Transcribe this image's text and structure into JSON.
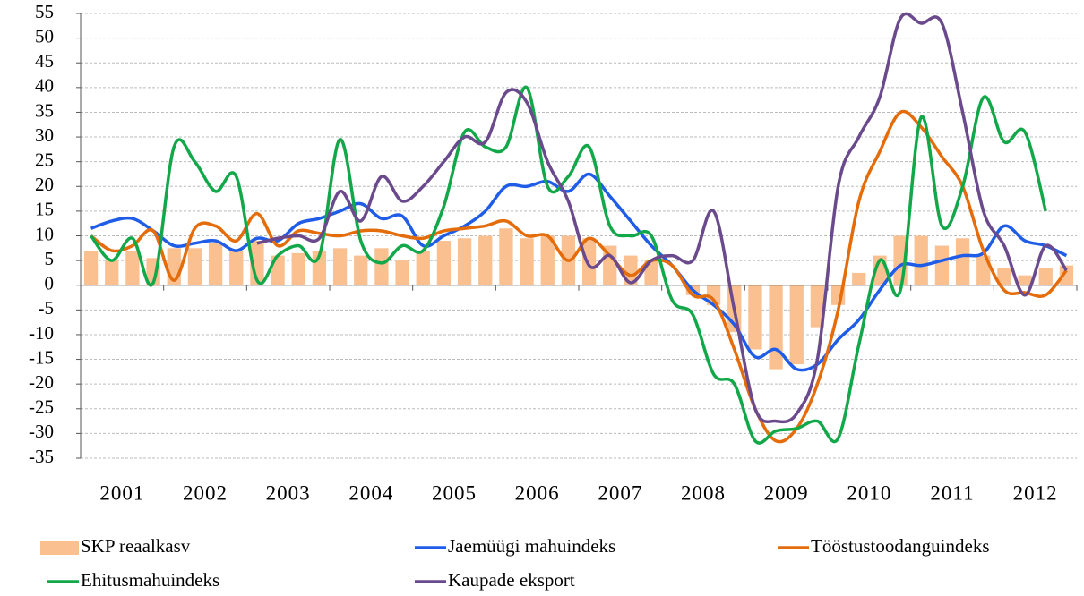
{
  "chart_data": {
    "type": "bar-line",
    "categories": [
      "2001",
      null,
      null,
      null,
      "2002",
      null,
      null,
      null,
      "2003",
      null,
      null,
      null,
      "2004",
      null,
      null,
      null,
      "2005",
      null,
      null,
      null,
      "2006",
      null,
      null,
      null,
      "2007",
      null,
      null,
      null,
      "2008",
      null,
      null,
      null,
      "2009",
      null,
      null,
      null,
      "2010",
      null,
      null,
      null,
      "2011",
      null,
      null,
      null,
      "2012",
      null,
      null,
      null
    ],
    "series": [
      {
        "name": "SKP reaalkasv",
        "type": "bar",
        "color": "#fac090",
        "values": [
          7,
          5,
          7,
          5.5,
          7.5,
          7.5,
          8.5,
          7,
          9,
          6,
          6.5,
          7,
          7.5,
          6,
          7.5,
          5,
          7,
          9,
          9.5,
          10,
          11.5,
          9.5,
          10,
          10,
          9.5,
          8,
          6,
          5,
          0,
          -2,
          -4,
          -9.5,
          -13,
          -17,
          -16,
          -8.5,
          -4,
          2.5,
          6,
          10,
          10,
          8,
          9.5,
          6,
          3.5,
          2,
          3.5,
          4
        ]
      },
      {
        "name": "Jaemüügi mahuindeks",
        "type": "line",
        "color": "#1f5de8",
        "values": [
          11.5,
          13,
          13.5,
          11,
          8,
          8.5,
          9,
          7,
          9.5,
          9,
          12.5,
          13.5,
          15,
          16.5,
          13.5,
          14,
          8,
          10,
          12,
          15,
          20,
          20,
          21,
          19,
          22.5,
          18,
          13,
          8,
          4,
          -1,
          -4,
          -8,
          -14.5,
          -13,
          -17,
          -16,
          -11,
          -7,
          -1,
          4,
          4,
          5,
          6,
          6.5,
          12,
          9,
          8,
          6
        ]
      },
      {
        "name": "Tööstustoodanguindeks",
        "type": "line",
        "color": "#e46c0a",
        "values": [
          10,
          7,
          8,
          11,
          1,
          11.5,
          12,
          9,
          14.5,
          8,
          11,
          10.5,
          10,
          11,
          11,
          10,
          9.5,
          11,
          11.5,
          12,
          13,
          10,
          10,
          5,
          9.5,
          6,
          2,
          5,
          4,
          -2,
          -3,
          -13,
          -25,
          -31.5,
          -29,
          -20,
          -5,
          17,
          27,
          35,
          32,
          26,
          20,
          7,
          -1,
          -1.5,
          -2,
          3
        ]
      },
      {
        "name": "Ehitusmahuindeks",
        "type": "line",
        "color": "#12a84a",
        "values": [
          10,
          5,
          9.5,
          0.5,
          28,
          25,
          19,
          22,
          1,
          6,
          8,
          6,
          29.5,
          9,
          4.5,
          8,
          7,
          16,
          31,
          28,
          28,
          40,
          20,
          22,
          28,
          12,
          10,
          10,
          -3,
          -6,
          -18,
          -20,
          -31.5,
          -29.5,
          -29,
          -27.5,
          -31,
          -12,
          5,
          -1,
          34,
          12,
          20,
          38,
          29,
          31,
          15,
          null
        ]
      },
      {
        "name": "Kaupade eksport",
        "type": "line",
        "color": "#6a4a8c",
        "values": [
          null,
          null,
          null,
          null,
          null,
          null,
          null,
          null,
          8.5,
          9.5,
          10,
          9.5,
          19,
          13,
          22,
          17,
          20,
          25,
          30,
          29,
          39,
          37,
          25,
          17,
          4,
          6,
          0.5,
          5,
          6,
          5,
          15,
          -5,
          -25,
          -27.5,
          -26,
          -15,
          20,
          30,
          38,
          54,
          53,
          53,
          35,
          15,
          8,
          -2,
          8,
          3
        ]
      }
    ],
    "ylim": [
      -35,
      55
    ],
    "yticks": [
      -35,
      -30,
      -25,
      -20,
      -15,
      -10,
      -5,
      0,
      5,
      10,
      15,
      20,
      25,
      30,
      35,
      40,
      45,
      50,
      55
    ],
    "grid": true
  }
}
